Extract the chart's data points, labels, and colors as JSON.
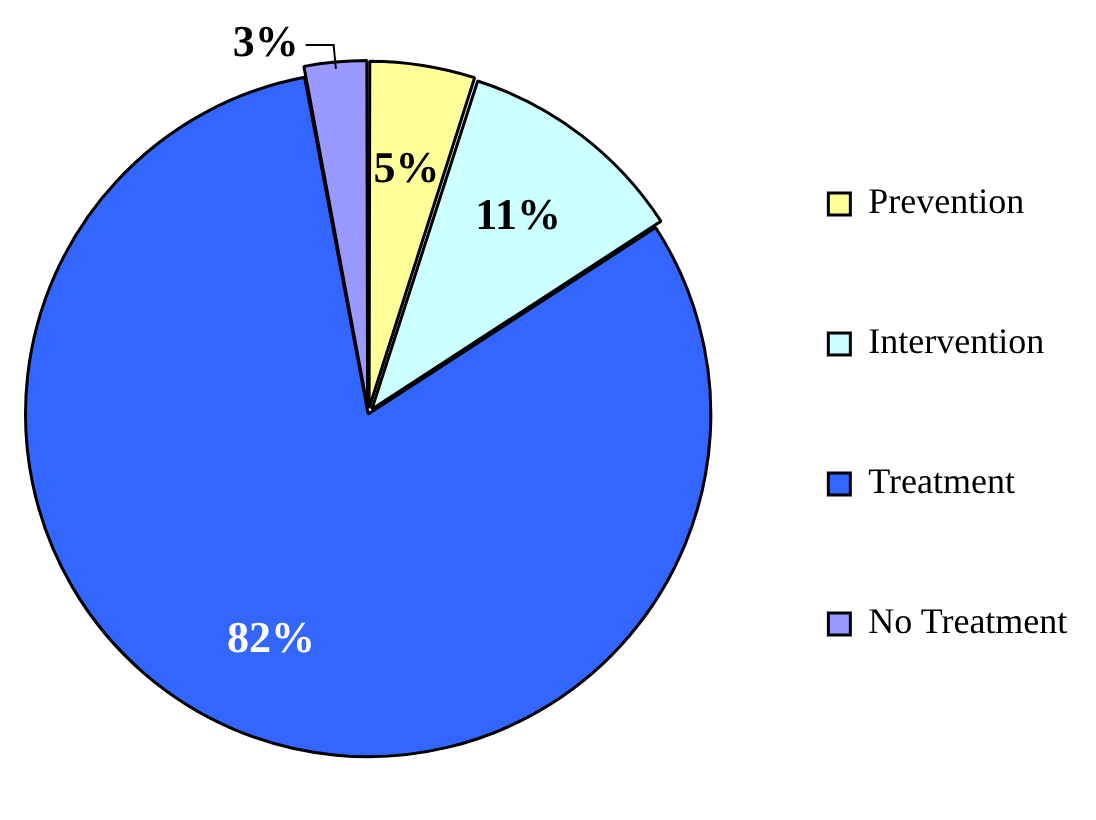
{
  "chart_data": {
    "type": "pie",
    "categories": [
      "Prevention",
      "Intervention",
      "Treatment",
      "No Treatment"
    ],
    "values": [
      5,
      11,
      82,
      3
    ],
    "colors": [
      "#ffff99",
      "#ccffff",
      "#3366ff",
      "#9999ff"
    ],
    "value_labels": [
      "5%",
      "11%",
      "82%",
      "3%"
    ],
    "legend": "right"
  }
}
